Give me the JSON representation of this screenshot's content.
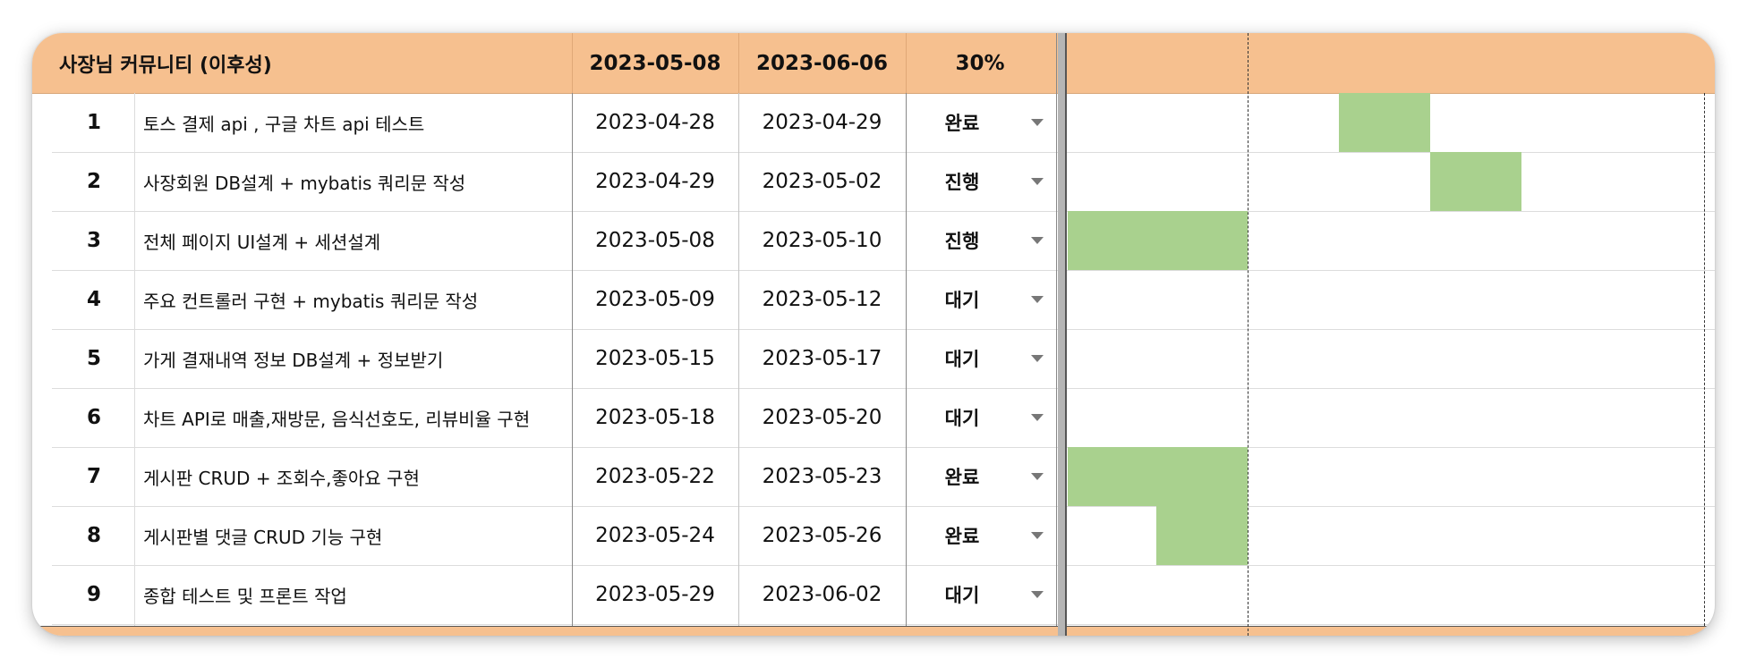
{
  "colors": {
    "header_band": "#f6c08f",
    "bar_fill": "#a9d18e",
    "separator": "#b5b5b5"
  },
  "header": {
    "project": "사장님 커뮤니티 (이후성)",
    "start": "2023-05-08",
    "end": "2023-06-06",
    "progress": "30%"
  },
  "rows": [
    {
      "num": "1",
      "task": "토스 결제 api , 구글 차트 api 테스트",
      "start": "2023-04-28",
      "end": "2023-04-29",
      "status": "완료"
    },
    {
      "num": "2",
      "task": "사장회원 DB설계 + mybatis 쿼리문 작성",
      "start": "2023-04-29",
      "end": "2023-05-02",
      "status": "진행"
    },
    {
      "num": "3",
      "task": "전체 페이지 UI설계 + 세션설계",
      "start": "2023-05-08",
      "end": "2023-05-10",
      "status": "진행"
    },
    {
      "num": "4",
      "task": "주요 컨트롤러 구현 + mybatis 쿼리문 작성",
      "start": "2023-05-09",
      "end": "2023-05-12",
      "status": "대기"
    },
    {
      "num": "5",
      "task": "가게 결재내역 정보 DB설계 + 정보받기",
      "start": "2023-05-15",
      "end": "2023-05-17",
      "status": "대기"
    },
    {
      "num": "6",
      "task": "차트 API로 매출,재방문, 음식선호도, 리뷰비율 구현",
      "start": "2023-05-18",
      "end": "2023-05-20",
      "status": "대기"
    },
    {
      "num": "7",
      "task": "게시판 CRUD + 조회수,좋아요 구현",
      "start": "2023-05-22",
      "end": "2023-05-23",
      "status": "완료"
    },
    {
      "num": "8",
      "task": "게시판별 댓글 CRUD 기능 구현",
      "start": "2023-05-24",
      "end": "2023-05-26",
      "status": "완료"
    },
    {
      "num": "9",
      "task": "종합 테스트 및 프론트 작업",
      "start": "2023-05-29",
      "end": "2023-06-02",
      "status": "대기"
    }
  ]
}
